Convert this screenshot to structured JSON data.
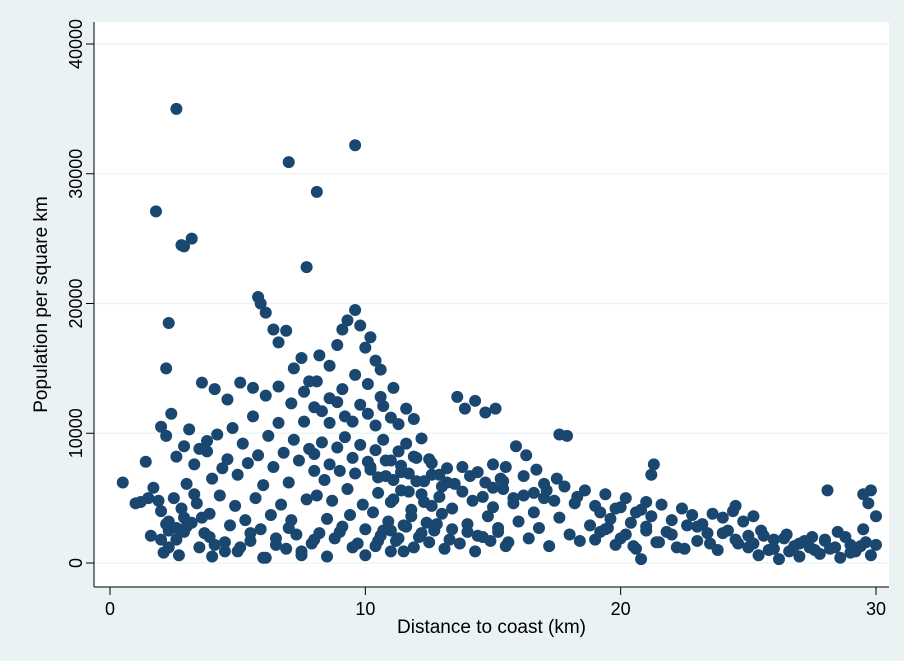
{
  "chart_data": {
    "type": "scatter",
    "title": "",
    "xlabel": "Distance to coast (km)",
    "ylabel": "Population per square km",
    "xlim": [
      0,
      30.3
    ],
    "ylim": [
      0,
      40000
    ],
    "xticks": [
      0,
      10,
      20,
      30
    ],
    "yticks": [
      0,
      10000,
      20000,
      30000,
      40000
    ],
    "grid": true,
    "legend": "none",
    "colors": {
      "background": "#eaf2f3",
      "plot_area": "#ffffff",
      "marker": "#1a476f",
      "grid": "#eaf2f3"
    },
    "series": [
      {
        "name": "",
        "x": [
          0.5,
          1.0,
          1.2,
          1.4,
          1.5,
          1.6,
          1.7,
          1.9,
          2.0,
          2.1,
          2.2,
          2.3,
          2.3,
          2.5,
          2.6,
          2.6,
          2.8,
          2.9,
          2.9,
          3.0,
          3.2,
          3.3,
          3.4,
          3.5,
          2.2,
          2.4,
          2.6,
          2.9,
          3.1,
          3.3,
          3.5,
          3.8,
          2.0,
          2.3,
          2.7,
          3.0,
          3.6,
          3.9,
          1.8,
          2.6,
          2.8,
          2.9,
          3.2,
          2.3,
          2.2,
          2.0,
          7.0,
          8.1,
          9.6,
          7.7,
          3.7,
          3.9,
          4.1,
          4.3,
          4.5,
          4.7,
          4.9,
          5.1,
          5.3,
          5.5,
          5.7,
          5.9,
          6.1,
          6.3,
          6.5,
          6.7,
          6.9,
          7.1,
          7.3,
          7.5,
          7.7,
          7.9,
          3.8,
          4.0,
          4.2,
          4.4,
          4.6,
          4.8,
          5.0,
          5.2,
          5.4,
          5.6,
          5.8,
          6.0,
          6.2,
          6.4,
          6.6,
          6.8,
          7.0,
          7.2,
          7.4,
          7.6,
          7.8,
          8.0,
          3.6,
          4.1,
          4.6,
          5.1,
          5.6,
          6.1,
          6.6,
          7.1,
          7.6,
          8.1,
          8.6,
          9.1,
          9.6,
          10.1,
          10.6,
          11.1,
          4.0,
          4.5,
          5.0,
          5.5,
          6.0,
          6.5,
          7.0,
          7.5,
          8.0,
          8.5,
          9.0,
          9.5,
          10.0,
          10.5,
          11.0,
          11.5,
          5.8,
          5.9,
          6.1,
          6.4,
          6.6,
          6.9,
          7.2,
          7.5,
          7.8,
          8.2,
          8.6,
          8.9,
          9.1,
          9.3,
          9.6,
          9.8,
          10.0,
          10.2,
          10.4,
          10.6,
          8.0,
          8.3,
          8.6,
          8.9,
          9.2,
          9.5,
          9.8,
          10.1,
          10.4,
          10.7,
          11.0,
          11.3,
          11.6,
          11.9,
          8.1,
          8.4,
          8.7,
          9.0,
          9.3,
          9.6,
          9.9,
          10.2,
          10.5,
          10.8,
          11.1,
          11.4,
          11.7,
          12.0,
          12.3,
          12.6,
          12.9,
          13.2,
          8.2,
          8.5,
          8.8,
          9.1,
          9.4,
          9.7,
          10.0,
          10.3,
          10.6,
          10.9,
          11.2,
          11.5,
          11.8,
          12.1,
          12.4,
          12.7,
          13.0,
          13.3,
          8.0,
          8.3,
          8.6,
          8.9,
          9.2,
          9.5,
          9.8,
          10.1,
          10.4,
          10.7,
          11.0,
          11.3,
          11.6,
          11.9,
          12.2,
          12.5,
          10.2,
          10.5,
          10.8,
          11.1,
          11.4,
          11.7,
          12.0,
          12.3,
          12.6,
          12.9,
          13.2,
          13.5,
          13.8,
          14.1,
          14.4,
          14.7,
          15.0,
          15.3,
          10.4,
          10.7,
          11.0,
          11.3,
          11.6,
          11.9,
          12.2,
          12.5,
          12.8,
          13.1,
          13.4,
          13.7,
          14.0,
          14.3,
          14.6,
          14.9,
          15.2,
          15.5,
          11.0,
          11.4,
          11.8,
          12.2,
          12.6,
          13.0,
          13.4,
          13.8,
          14.2,
          14.6,
          15.0,
          15.4,
          15.8,
          16.2,
          16.6,
          17.0,
          13.6,
          13.9,
          14.3,
          14.7,
          15.1,
          15.5,
          15.9,
          16.3,
          16.7,
          17.1,
          17.5,
          17.9,
          18.3,
          17.6,
          14.0,
          14.4,
          14.8,
          15.2,
          15.6,
          16.0,
          16.4,
          16.8,
          17.2,
          17.6,
          18.0,
          18.4,
          18.8,
          19.2,
          15.0,
          15.4,
          15.8,
          16.2,
          16.6,
          17.0,
          17.4,
          17.8,
          18.2,
          18.6,
          19.0,
          19.4,
          19.8,
          20.2,
          20.6,
          21.0,
          19.0,
          19.4,
          19.8,
          20.2,
          20.6,
          21.0,
          21.4,
          21.8,
          22.2,
          22.6,
          23.0,
          23.4,
          23.8,
          24.2,
          24.6,
          25.0,
          19.2,
          19.6,
          20.0,
          20.4,
          20.8,
          21.2,
          21.6,
          22.0,
          22.4,
          22.8,
          23.2,
          23.6,
          24.0,
          24.4,
          24.8,
          25.2,
          19.5,
          20.0,
          20.5,
          21.0,
          21.5,
          22.0,
          22.5,
          23.0,
          23.5,
          24.0,
          24.5,
          25.0,
          21.3,
          21.2,
          20.8,
          25.2,
          25.6,
          26.0,
          26.4,
          26.8,
          27.2,
          27.6,
          28.0,
          28.4,
          28.8,
          29.2,
          29.6,
          30.0,
          25.4,
          25.8,
          26.2,
          26.6,
          27.0,
          27.4,
          27.8,
          28.2,
          28.6,
          29.0,
          29.4,
          29.8,
          25.5,
          26.0,
          26.5,
          27.0,
          27.5,
          28.0,
          28.5,
          29.0,
          29.5,
          24.5,
          28.1,
          29.5,
          29.8,
          29.7,
          30.0
        ],
        "y": [
          6200,
          4600,
          4700,
          7800,
          5000,
          2100,
          5800,
          4800,
          4000,
          800,
          3000,
          2500,
          3200,
          5000,
          1800,
          2700,
          4200,
          3500,
          2400,
          6100,
          3100,
          5300,
          4600,
          1200,
          9800,
          11500,
          8200,
          9000,
          10300,
          7600,
          8800,
          9400,
          1800,
          1200,
          600,
          2800,
          3500,
          2000,
          27100,
          35000,
          24500,
          24400,
          25000,
          18500,
          15000,
          10500,
          30900,
          28600,
          32200,
          22800,
          2300,
          3800,
          1400,
          5200,
          900,
          2900,
          4400,
          1200,
          3300,
          1700,
          5000,
          2600,
          400,
          3700,
          1900,
          4500,
          1100,
          3300,
          2200,
          600,
          4900,
          1500,
          8600,
          6500,
          9900,
          7300,
          8000,
          10400,
          6800,
          9200,
          7700,
          11300,
          8300,
          6000,
          9800,
          7400,
          10800,
          8500,
          6200,
          9500,
          7900,
          10900,
          8800,
          7100,
          13900,
          13400,
          12600,
          13900,
          13500,
          12900,
          13600,
          12300,
          13200,
          14000,
          12700,
          13400,
          14500,
          13800,
          12800,
          13500,
          500,
          1600,
          900,
          2300,
          400,
          1400,
          2700,
          900,
          1800,
          500,
          2400,
          1200,
          600,
          1700,
          2500,
          900,
          20500,
          20000,
          19300,
          18000,
          17000,
          17900,
          15000,
          15800,
          14000,
          16000,
          15200,
          16800,
          18000,
          18700,
          19500,
          18300,
          16600,
          17400,
          15600,
          14900,
          12000,
          11700,
          10800,
          12400,
          11300,
          10900,
          12200,
          11500,
          10600,
          12100,
          11200,
          10700,
          11900,
          11100,
          5200,
          6400,
          4800,
          7100,
          5700,
          6900,
          4500,
          7400,
          5400,
          6700,
          4900,
          7000,
          5500,
          6300,
          4700,
          6800,
          5100,
          6200,
          2300,
          3400,
          1900,
          2800,
          3700,
          1500,
          2600,
          3900,
          2100,
          3200,
          1700,
          2900,
          3600,
          2000,
          3100,
          2500,
          3800,
          1800,
          8400,
          9300,
          7600,
          8900,
          9700,
          8100,
          9100,
          7800,
          8700,
          9500,
          7900,
          8600,
          9200,
          8200,
          9600,
          8000,
          7200,
          6600,
          7900,
          6400,
          7500,
          6900,
          8100,
          6300,
          7700,
          6800,
          7300,
          6100,
          7400,
          6700,
          7000,
          6200,
          7600,
          6500,
          1300,
          2500,
          900,
          1900,
          2800,
          1200,
          2300,
          1600,
          3000,
          1100,
          2600,
          1500,
          2400,
          900,
          2000,
          1700,
          2700,
          1300,
          4700,
          5600,
          4100,
          5300,
          4400,
          5900,
          4200,
          5500,
          4800,
          5100,
          4300,
          5700,
          4600,
          5200,
          3900,
          5000,
          12800,
          11900,
          12500,
          11600,
          11900,
          7400,
          9000,
          8300,
          7200,
          5600,
          6500,
          9800,
          5100,
          9900,
          3000,
          2100,
          3600,
          2400,
          1600,
          3200,
          1900,
          2700,
          1300,
          3500,
          2200,
          1700,
          2900,
          2400,
          5800,
          6300,
          5000,
          6700,
          5400,
          6100,
          4800,
          5900,
          4600,
          5600,
          4400,
          5300,
          4200,
          5000,
          3900,
          4700,
          1800,
          2600,
          1400,
          2200,
          1100,
          2800,
          1600,
          2400,
          1200,
          2900,
          1700,
          2300,
          1000,
          2500,
          1500,
          2100,
          3900,
          3400,
          4300,
          3100,
          4100,
          3600,
          4500,
          3300,
          4200,
          3700,
          3000,
          3800,
          3500,
          4000,
          3200,
          3600,
          2700,
          1900,
          1300,
          2500,
          1600,
          2200,
          1100,
          2800,
          1500,
          2300,
          1800,
          1200,
          7600,
          6800,
          300,
          1500,
          2100,
          1100,
          1900,
          1300,
          1700,
          1000,
          1800,
          1200,
          2000,
          900,
          1600,
          1400,
          600,
          1000,
          300,
          900,
          500,
          1200,
          700,
          1100,
          400,
          800,
          1300,
          600,
          2500,
          1800,
          2200,
          1500,
          2000,
          1700,
          2400,
          1400,
          2600,
          4400,
          5600,
          5300,
          5600,
          4600,
          3600
        ]
      }
    ]
  }
}
